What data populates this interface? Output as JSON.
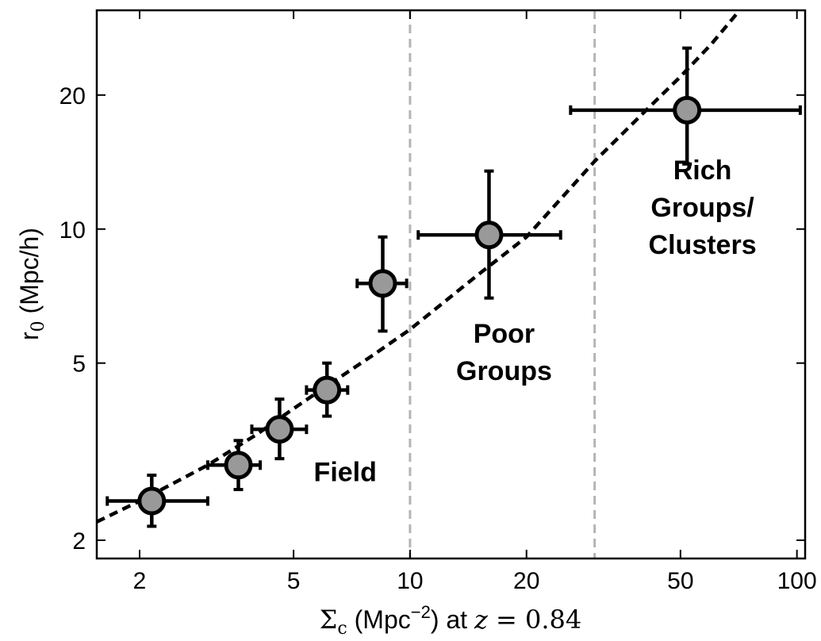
{
  "chart_data": {
    "type": "scatter",
    "xscale": "log",
    "yscale": "log",
    "xlim": [
      1.55,
      105
    ],
    "ylim": [
      1.82,
      31
    ],
    "xticks": [
      2,
      5,
      10,
      20,
      50,
      100
    ],
    "xtick_labels": [
      "2",
      "5",
      "10",
      "20",
      "50",
      "100"
    ],
    "yticks": [
      2,
      5,
      10,
      20
    ],
    "ytick_labels": [
      "2",
      "5",
      "10",
      "20"
    ],
    "xlabel": {
      "symbol": "Σ",
      "subscript": "c",
      "unit_open": " (Mpc",
      "unit_exp": "−2",
      "unit_close": ") at ",
      "z_var": "z",
      "z_value": " = 0.84"
    },
    "ylabel": {
      "symbol": "r",
      "subscript": "0",
      "unit": " (Mpc/h)"
    },
    "points": [
      {
        "x": 2.15,
        "y": 2.45,
        "xerr_lo": 1.65,
        "xerr_hi": 3.0,
        "yerr_lo": 2.15,
        "yerr_hi": 2.8
      },
      {
        "x": 3.6,
        "y": 2.95,
        "xerr_lo": 3.0,
        "xerr_hi": 4.1,
        "yerr_lo": 2.6,
        "yerr_hi": 3.35
      },
      {
        "x": 4.6,
        "y": 3.55,
        "xerr_lo": 3.9,
        "xerr_hi": 5.4,
        "yerr_lo": 3.05,
        "yerr_hi": 4.15
      },
      {
        "x": 6.1,
        "y": 4.35,
        "xerr_lo": 5.4,
        "xerr_hi": 6.9,
        "yerr_lo": 3.8,
        "yerr_hi": 5.0
      },
      {
        "x": 8.5,
        "y": 7.55,
        "xerr_lo": 7.3,
        "xerr_hi": 9.8,
        "yerr_lo": 5.9,
        "yerr_hi": 9.6
      },
      {
        "x": 16,
        "y": 9.7,
        "xerr_lo": 10.5,
        "xerr_hi": 24.5,
        "yerr_lo": 7.0,
        "yerr_hi": 13.5
      },
      {
        "x": 52,
        "y": 18.5,
        "xerr_lo": 26,
        "xerr_hi": 102,
        "yerr_lo": 14.0,
        "yerr_hi": 25.5
      }
    ],
    "fit_curve": {
      "style": "dashed",
      "x": [
        1.55,
        2,
        3,
        4,
        5,
        6,
        8,
        10,
        15,
        20,
        30,
        40,
        50,
        60,
        70
      ],
      "y": [
        2.2,
        2.45,
        2.95,
        3.45,
        3.95,
        4.4,
        5.2,
        5.95,
        7.9,
        9.6,
        14.2,
        18.2,
        22.0,
        26.0,
        30.5
      ]
    },
    "vlines": [
      {
        "x": 10,
        "style": "dashed"
      },
      {
        "x": 30,
        "style": "dashed"
      }
    ],
    "marker_color": "#999999",
    "marker_edge_color": "#000000",
    "vline_color": "#b4b4b4",
    "annotations": [
      {
        "lines": [
          "Field"
        ],
        "x": 6.8,
        "y": 2.85
      },
      {
        "lines": [
          "Poor",
          "Groups"
        ],
        "x": 17.5,
        "y": 5.3
      },
      {
        "lines": [
          "Rich",
          "Groups/",
          "Clusters"
        ],
        "x": 57,
        "y": 11.2
      }
    ]
  }
}
